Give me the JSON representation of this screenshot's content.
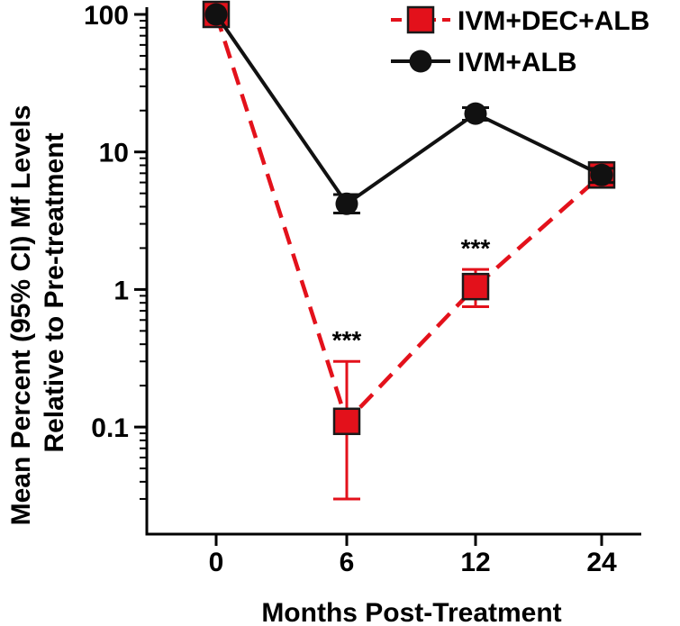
{
  "chart_data": {
    "type": "line",
    "xlabel": "Months Post-Treatment",
    "ylabel_line1": "Mean Percent (95% CI) Mf Levels",
    "ylabel_line2": "Relative to Pre-treatment",
    "y_scale": "log",
    "ylim": [
      0.025,
      100
    ],
    "categories": [
      "0",
      "6",
      "12",
      "24"
    ],
    "y_ticks": [
      {
        "value": 100,
        "label": "100"
      },
      {
        "value": 10,
        "label": "10"
      },
      {
        "value": 1,
        "label": "1"
      },
      {
        "value": 0.1,
        "label": "0.1"
      }
    ],
    "legend_position": "top-right",
    "series": [
      {
        "name": "IVM+DEC+ALB",
        "color": "#e3111b",
        "marker": "square",
        "line_style": "dashed",
        "values": [
          100,
          0.11,
          1.05,
          6.8
        ],
        "ci_low": [
          100,
          0.03,
          0.75,
          6.0
        ],
        "ci_high": [
          100,
          0.3,
          1.4,
          7.5
        ]
      },
      {
        "name": "IVM+ALB",
        "color": "#111111",
        "marker": "circle",
        "line_style": "solid",
        "values": [
          100,
          4.2,
          19,
          6.8
        ],
        "ci_low": [
          100,
          3.6,
          17,
          6.0
        ],
        "ci_high": [
          100,
          4.9,
          21,
          7.6
        ]
      }
    ],
    "annotations": [
      {
        "category_index": 1,
        "text": "***"
      },
      {
        "category_index": 2,
        "text": "***"
      }
    ]
  }
}
